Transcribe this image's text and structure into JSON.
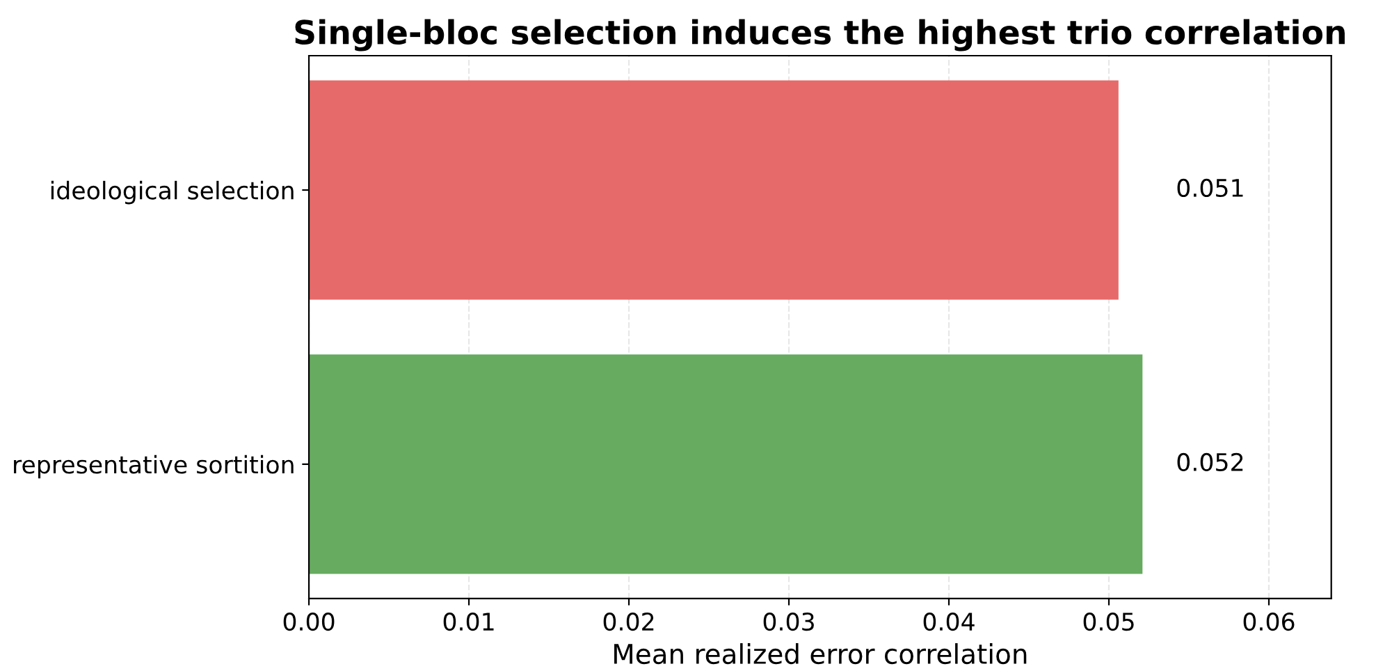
{
  "chart_data": {
    "type": "bar",
    "orientation": "horizontal",
    "title": "Single-bloc selection induces the highest trio correlation",
    "xlabel": "Mean realized error correlation",
    "categories": [
      "ideological selection",
      "representative sortition"
    ],
    "values": [
      0.0506,
      0.0521
    ],
    "value_labels": [
      "0.051",
      "0.052"
    ],
    "colors": [
      "#e66a69",
      "#66ab5f"
    ],
    "xlim": [
      0,
      0.0639
    ],
    "xticks": [
      {
        "value": 0,
        "label": "0.00"
      },
      {
        "value": 0.01,
        "label": "0.01"
      },
      {
        "value": 0.02,
        "label": "0.02"
      },
      {
        "value": 0.03,
        "label": "0.03"
      },
      {
        "value": 0.04,
        "label": "0.04"
      },
      {
        "value": 0.05,
        "label": "0.05"
      },
      {
        "value": 0.06,
        "label": "0.06"
      }
    ],
    "grid": "x",
    "legend": false
  }
}
